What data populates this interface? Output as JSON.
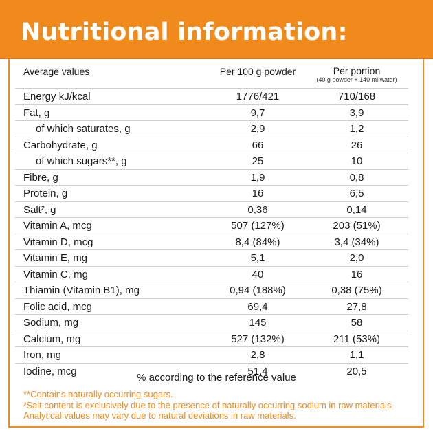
{
  "header": {
    "title": "Nutritional information:"
  },
  "table": {
    "col1_header": "Average values",
    "col2_header": "Per 100 g powder",
    "col3_header": "Per portion",
    "col3_subheader": "(40 g powder + 140 ml water)",
    "rows": [
      {
        "label": "Energy kJ/kcal",
        "per100": "1776/421",
        "portion": "710/168",
        "indent": false
      },
      {
        "label": "Fat, g",
        "per100": "9,7",
        "portion": "3,9",
        "indent": false
      },
      {
        "label": "of which saturates, g",
        "per100": "2,9",
        "portion": "1,2",
        "indent": true
      },
      {
        "label": "Carbohydrate, g",
        "per100": "66",
        "portion": "26",
        "indent": false
      },
      {
        "label": "of which sugars**, g",
        "per100": "25",
        "portion": "10",
        "indent": true
      },
      {
        "label": "Fibre, g",
        "per100": "1,9",
        "portion": "0,8",
        "indent": false
      },
      {
        "label": "Protein, g",
        "per100": "16",
        "portion": "6,5",
        "indent": false
      },
      {
        "label": "Salt², g",
        "per100": "0,36",
        "portion": "0,14",
        "indent": false
      },
      {
        "label": "Vitamin A, mcg",
        "per100": "507 (127%)",
        "portion": "203 (51%)",
        "indent": false
      },
      {
        "label": "Vitamin D, mcg",
        "per100": "8,4 (84%)",
        "portion": "3,4 (34%)",
        "indent": false
      },
      {
        "label": "Vitamin E, mg",
        "per100": "5,1",
        "portion": "2,0",
        "indent": false
      },
      {
        "label": "Vitamin C, mg",
        "per100": "40",
        "portion": "16",
        "indent": false
      },
      {
        "label": "Thiamin (Vitamin B1), mg",
        "per100": "0,94 (188%)",
        "portion": "0,38 (75%)",
        "indent": false
      },
      {
        "label": "Folic acid, mcg",
        "per100": "69,4",
        "portion": "27,8",
        "indent": false
      },
      {
        "label": "Sodium, mg",
        "per100": "145",
        "portion": "58",
        "indent": false
      },
      {
        "label": "Calcium, mg",
        "per100": "527 (132%)",
        "portion": "211 (53%)",
        "indent": false
      },
      {
        "label": "Iron, mg",
        "per100": "2,8",
        "portion": "1,1",
        "indent": false
      },
      {
        "label": "Iodine, mcg",
        "per100": "51,4",
        "portion": "20,5",
        "indent": false
      }
    ]
  },
  "reference_note": "% according to the reference value",
  "footnotes": [
    "**Contains naturally occurring sugars.",
    "²Salt content is exclusively due to the presence of naturally occurring sodium in raw materials",
    "Analytical values may vary due to natural deviations in raw materials."
  ],
  "colors": {
    "accent": "#f08a1c",
    "text": "#1a1a1a",
    "rule": "#cfcfcf"
  }
}
